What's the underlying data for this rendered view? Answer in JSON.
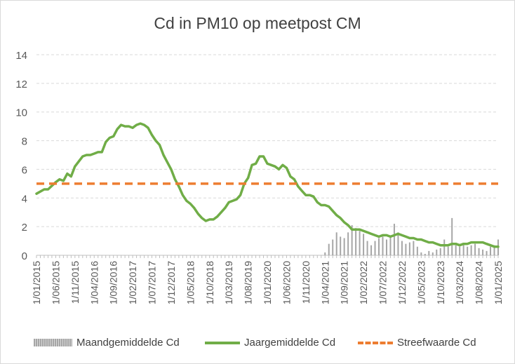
{
  "chart_data": {
    "type": "line",
    "title": "Cd in PM10 op meetpost CM",
    "xlabel": "",
    "ylabel": "",
    "ylim": [
      0,
      14
    ],
    "yticks": [
      0,
      2,
      4,
      6,
      8,
      10,
      12,
      14
    ],
    "grid": true,
    "legend_position": "bottom",
    "x_start": "2015-01",
    "x_end": "2025-01",
    "xtick_labels": [
      "1/01/2015",
      "1/06/2015",
      "1/11/2015",
      "1/04/2016",
      "1/09/2016",
      "1/02/2017",
      "1/07/2017",
      "1/12/2017",
      "1/05/2018",
      "1/10/2018",
      "1/03/2019",
      "1/08/2019",
      "1/01/2020",
      "1/06/2020",
      "1/11/2020",
      "1/04/2021",
      "1/09/2021",
      "1/02/2022",
      "1/07/2022",
      "1/12/2022",
      "1/05/2023",
      "1/10/2023",
      "1/03/2024",
      "1/08/2024",
      "1/01/2025"
    ],
    "series": [
      {
        "name": "Maandgemiddelde Cd",
        "kind": "bar",
        "color": "#a6a6a6",
        "points": [
          {
            "x": "2021-04",
            "y": 0.2
          },
          {
            "x": "2021-05",
            "y": 0.8
          },
          {
            "x": "2021-06",
            "y": 1.1
          },
          {
            "x": "2021-07",
            "y": 1.6
          },
          {
            "x": "2021-08",
            "y": 1.3
          },
          {
            "x": "2021-09",
            "y": 1.2
          },
          {
            "x": "2021-10",
            "y": 1.6
          },
          {
            "x": "2021-11",
            "y": 2.1
          },
          {
            "x": "2021-12",
            "y": 1.9
          },
          {
            "x": "2022-01",
            "y": 1.7
          },
          {
            "x": "2022-02",
            "y": 1.5
          },
          {
            "x": "2022-03",
            "y": 1.0
          },
          {
            "x": "2022-04",
            "y": 0.7
          },
          {
            "x": "2022-05",
            "y": 1.0
          },
          {
            "x": "2022-06",
            "y": 1.2
          },
          {
            "x": "2022-07",
            "y": 1.3
          },
          {
            "x": "2022-08",
            "y": 1.1
          },
          {
            "x": "2022-09",
            "y": 1.4
          },
          {
            "x": "2022-10",
            "y": 2.2
          },
          {
            "x": "2022-11",
            "y": 1.6
          },
          {
            "x": "2022-12",
            "y": 1.0
          },
          {
            "x": "2023-01",
            "y": 0.8
          },
          {
            "x": "2023-02",
            "y": 0.9
          },
          {
            "x": "2023-03",
            "y": 1.0
          },
          {
            "x": "2023-04",
            "y": 0.6
          },
          {
            "x": "2023-05",
            "y": 0.2
          },
          {
            "x": "2023-06",
            "y": 0.1
          },
          {
            "x": "2023-07",
            "y": 0.3
          },
          {
            "x": "2023-08",
            "y": 0.2
          },
          {
            "x": "2023-09",
            "y": 0.4
          },
          {
            "x": "2023-10",
            "y": 0.5
          },
          {
            "x": "2023-11",
            "y": 1.1
          },
          {
            "x": "2023-12",
            "y": 0.6
          },
          {
            "x": "2024-01",
            "y": 2.6
          },
          {
            "x": "2024-02",
            "y": 0.7
          },
          {
            "x": "2024-03",
            "y": 0.6
          },
          {
            "x": "2024-04",
            "y": 0.8
          },
          {
            "x": "2024-05",
            "y": 0.6
          },
          {
            "x": "2024-06",
            "y": 0.7
          },
          {
            "x": "2024-07",
            "y": 0.8
          },
          {
            "x": "2024-08",
            "y": 0.5
          },
          {
            "x": "2024-09",
            "y": 0.4
          },
          {
            "x": "2024-10",
            "y": 0.3
          },
          {
            "x": "2024-11",
            "y": 0.6
          },
          {
            "x": "2024-12",
            "y": 0.7
          },
          {
            "x": "2025-01",
            "y": 1.1
          }
        ]
      },
      {
        "name": "Jaargemiddelde Cd",
        "kind": "line",
        "color": "#70ad47",
        "points": [
          {
            "x": "2015-01",
            "y": 4.3
          },
          {
            "x": "2015-03",
            "y": 4.6
          },
          {
            "x": "2015-04",
            "y": 4.6
          },
          {
            "x": "2015-06",
            "y": 5.1
          },
          {
            "x": "2015-07",
            "y": 5.3
          },
          {
            "x": "2015-08",
            "y": 5.2
          },
          {
            "x": "2015-09",
            "y": 5.7
          },
          {
            "x": "2015-10",
            "y": 5.5
          },
          {
            "x": "2015-11",
            "y": 6.2
          },
          {
            "x": "2016-01",
            "y": 6.9
          },
          {
            "x": "2016-02",
            "y": 7.0
          },
          {
            "x": "2016-03",
            "y": 7.0
          },
          {
            "x": "2016-04",
            "y": 7.1
          },
          {
            "x": "2016-05",
            "y": 7.2
          },
          {
            "x": "2016-06",
            "y": 7.2
          },
          {
            "x": "2016-07",
            "y": 7.9
          },
          {
            "x": "2016-08",
            "y": 8.2
          },
          {
            "x": "2016-09",
            "y": 8.3
          },
          {
            "x": "2016-10",
            "y": 8.8
          },
          {
            "x": "2016-11",
            "y": 9.1
          },
          {
            "x": "2016-12",
            "y": 9.0
          },
          {
            "x": "2017-01",
            "y": 9.0
          },
          {
            "x": "2017-02",
            "y": 8.9
          },
          {
            "x": "2017-03",
            "y": 9.1
          },
          {
            "x": "2017-04",
            "y": 9.2
          },
          {
            "x": "2017-05",
            "y": 9.1
          },
          {
            "x": "2017-06",
            "y": 8.9
          },
          {
            "x": "2017-07",
            "y": 8.4
          },
          {
            "x": "2017-08",
            "y": 8.0
          },
          {
            "x": "2017-09",
            "y": 7.7
          },
          {
            "x": "2017-10",
            "y": 7.0
          },
          {
            "x": "2017-11",
            "y": 6.5
          },
          {
            "x": "2017-12",
            "y": 6.0
          },
          {
            "x": "2018-01",
            "y": 5.3
          },
          {
            "x": "2018-02",
            "y": 4.8
          },
          {
            "x": "2018-03",
            "y": 4.2
          },
          {
            "x": "2018-04",
            "y": 3.8
          },
          {
            "x": "2018-05",
            "y": 3.6
          },
          {
            "x": "2018-06",
            "y": 3.3
          },
          {
            "x": "2018-07",
            "y": 2.9
          },
          {
            "x": "2018-08",
            "y": 2.6
          },
          {
            "x": "2018-09",
            "y": 2.4
          },
          {
            "x": "2018-10",
            "y": 2.5
          },
          {
            "x": "2018-11",
            "y": 2.5
          },
          {
            "x": "2018-12",
            "y": 2.7
          },
          {
            "x": "2019-01",
            "y": 3.0
          },
          {
            "x": "2019-02",
            "y": 3.3
          },
          {
            "x": "2019-03",
            "y": 3.7
          },
          {
            "x": "2019-04",
            "y": 3.8
          },
          {
            "x": "2019-05",
            "y": 3.9
          },
          {
            "x": "2019-06",
            "y": 4.2
          },
          {
            "x": "2019-07",
            "y": 5.0
          },
          {
            "x": "2019-08",
            "y": 5.4
          },
          {
            "x": "2019-09",
            "y": 6.3
          },
          {
            "x": "2019-10",
            "y": 6.4
          },
          {
            "x": "2019-11",
            "y": 6.9
          },
          {
            "x": "2019-12",
            "y": 6.9
          },
          {
            "x": "2020-01",
            "y": 6.4
          },
          {
            "x": "2020-02",
            "y": 6.3
          },
          {
            "x": "2020-03",
            "y": 6.2
          },
          {
            "x": "2020-04",
            "y": 6.0
          },
          {
            "x": "2020-05",
            "y": 6.3
          },
          {
            "x": "2020-06",
            "y": 6.1
          },
          {
            "x": "2020-07",
            "y": 5.5
          },
          {
            "x": "2020-08",
            "y": 5.3
          },
          {
            "x": "2020-09",
            "y": 4.8
          },
          {
            "x": "2020-10",
            "y": 4.5
          },
          {
            "x": "2020-11",
            "y": 4.2
          },
          {
            "x": "2020-12",
            "y": 4.2
          },
          {
            "x": "2021-01",
            "y": 4.1
          },
          {
            "x": "2021-02",
            "y": 3.7
          },
          {
            "x": "2021-03",
            "y": 3.5
          },
          {
            "x": "2021-04",
            "y": 3.5
          },
          {
            "x": "2021-05",
            "y": 3.4
          },
          {
            "x": "2021-06",
            "y": 3.1
          },
          {
            "x": "2021-07",
            "y": 2.8
          },
          {
            "x": "2021-08",
            "y": 2.6
          },
          {
            "x": "2021-09",
            "y": 2.3
          },
          {
            "x": "2021-10",
            "y": 2.1
          },
          {
            "x": "2021-11",
            "y": 1.8
          },
          {
            "x": "2021-12",
            "y": 1.8
          },
          {
            "x": "2022-01",
            "y": 1.8
          },
          {
            "x": "2022-02",
            "y": 1.7
          },
          {
            "x": "2022-03",
            "y": 1.6
          },
          {
            "x": "2022-04",
            "y": 1.5
          },
          {
            "x": "2022-05",
            "y": 1.4
          },
          {
            "x": "2022-06",
            "y": 1.3
          },
          {
            "x": "2022-07",
            "y": 1.4
          },
          {
            "x": "2022-08",
            "y": 1.4
          },
          {
            "x": "2022-09",
            "y": 1.3
          },
          {
            "x": "2022-10",
            "y": 1.4
          },
          {
            "x": "2022-11",
            "y": 1.5
          },
          {
            "x": "2022-12",
            "y": 1.4
          },
          {
            "x": "2023-01",
            "y": 1.3
          },
          {
            "x": "2023-02",
            "y": 1.2
          },
          {
            "x": "2023-03",
            "y": 1.2
          },
          {
            "x": "2023-04",
            "y": 1.1
          },
          {
            "x": "2023-05",
            "y": 1.1
          },
          {
            "x": "2023-06",
            "y": 1.0
          },
          {
            "x": "2023-07",
            "y": 0.9
          },
          {
            "x": "2023-08",
            "y": 0.9
          },
          {
            "x": "2023-09",
            "y": 0.8
          },
          {
            "x": "2023-10",
            "y": 0.7
          },
          {
            "x": "2023-11",
            "y": 0.7
          },
          {
            "x": "2023-12",
            "y": 0.7
          },
          {
            "x": "2024-01",
            "y": 0.8
          },
          {
            "x": "2024-02",
            "y": 0.8
          },
          {
            "x": "2024-03",
            "y": 0.7
          },
          {
            "x": "2024-04",
            "y": 0.8
          },
          {
            "x": "2024-05",
            "y": 0.8
          },
          {
            "x": "2024-06",
            "y": 0.9
          },
          {
            "x": "2024-07",
            "y": 0.9
          },
          {
            "x": "2024-08",
            "y": 0.9
          },
          {
            "x": "2024-09",
            "y": 0.9
          },
          {
            "x": "2024-10",
            "y": 0.8
          },
          {
            "x": "2024-11",
            "y": 0.7
          },
          {
            "x": "2024-12",
            "y": 0.6
          },
          {
            "x": "2025-01",
            "y": 0.6
          }
        ]
      },
      {
        "name": "Streefwaarde Cd",
        "kind": "line-dashed",
        "color": "#ed7d31",
        "points": [
          {
            "x": "2015-01",
            "y": 5
          },
          {
            "x": "2025-01",
            "y": 5
          }
        ]
      }
    ]
  }
}
